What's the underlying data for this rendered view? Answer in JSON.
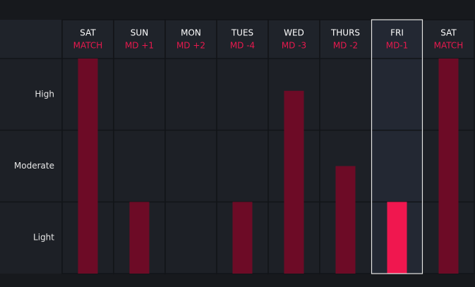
{
  "chart_data": {
    "type": "bar",
    "categories": [
      "SAT",
      "SUN",
      "MON",
      "TUES",
      "WED",
      "THURS",
      "FRI",
      "SAT"
    ],
    "subcategories": [
      "MATCH",
      "MD +1",
      "MD +2",
      "MD -4",
      "MD -3",
      "MD -2",
      "MD-1",
      "MATCH"
    ],
    "values": [
      3,
      1,
      0,
      1,
      2.55,
      1.5,
      1,
      3
    ],
    "color": "#6d0b26",
    "highlight_color": "#f0174f",
    "highlight_index": 6,
    "ylim": [
      0,
      3
    ],
    "yticks": [
      {
        "value": 0.5,
        "label": "Light"
      },
      {
        "value": 1.5,
        "label": "Moderate"
      },
      {
        "value": 2.5,
        "label": "High"
      }
    ]
  }
}
